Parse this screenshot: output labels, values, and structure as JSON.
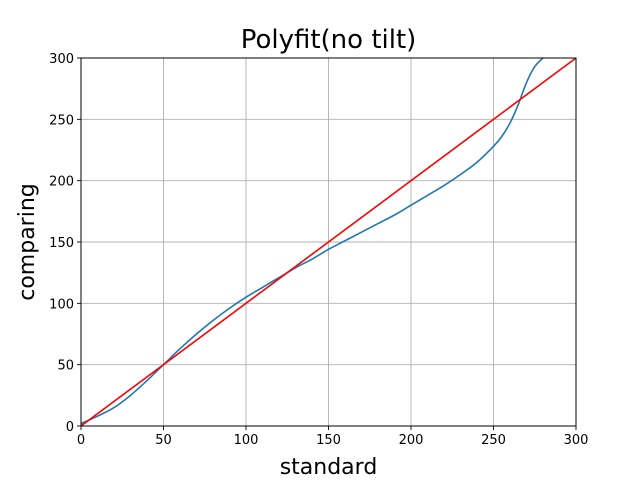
{
  "chart_data": {
    "type": "line",
    "title": "Polyfit(no tilt)",
    "xlabel": "standard",
    "ylabel": "comparing",
    "xlim": [
      0,
      300
    ],
    "ylim": [
      0,
      300
    ],
    "xticks": [
      0,
      50,
      100,
      150,
      200,
      250,
      300
    ],
    "yticks": [
      0,
      50,
      100,
      150,
      200,
      250,
      300
    ],
    "grid": true,
    "series": [
      {
        "color": "#1f77b4",
        "x": [
          0,
          10,
          20,
          30,
          40,
          50,
          60,
          70,
          80,
          90,
          100,
          110,
          120,
          130,
          140,
          150,
          160,
          170,
          180,
          190,
          200,
          210,
          220,
          230,
          240,
          250,
          255,
          260,
          265,
          270,
          275,
          280
        ],
        "y": [
          2,
          8,
          15,
          25,
          37,
          50,
          63,
          75,
          86,
          96,
          105,
          113,
          121,
          129,
          136,
          144,
          151,
          158,
          165,
          172,
          180,
          188,
          196,
          205,
          215,
          228,
          236,
          247,
          262,
          280,
          293,
          300
        ]
      },
      {
        "color": "#ff0000",
        "x": [
          0,
          300
        ],
        "y": [
          0,
          300
        ]
      }
    ]
  }
}
